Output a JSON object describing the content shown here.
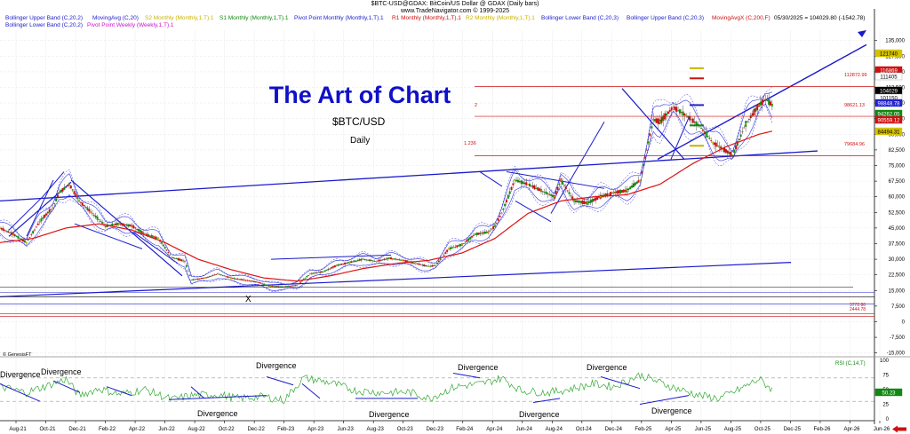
{
  "header": {
    "line1": "$BTC-USD@GDAX: BitCoin/US Dollar @ GDAX (Daily bars)",
    "line2": "www.TradeNavigator.com © 1999-2025",
    "quote": "05/30/2025 = 104029.80 (-1542.78)"
  },
  "indicators": [
    {
      "label": "Bollinger Upper Band (C,20,2)",
      "color": "#2222cc"
    },
    {
      "label": "MovingAvg (C,20)",
      "color": "#2222cc"
    },
    {
      "label": "S2 Monthly (Monthly,1,T).1",
      "color": "#c8b400"
    },
    {
      "label": "S1 Monthly (Monthly,1,T).1",
      "color": "#118811"
    },
    {
      "label": "Pivot Point Monthly (Monthly,1,T).1",
      "color": "#2222cc"
    },
    {
      "label": "R1 Monthly (Monthly,1,T).1",
      "color": "#cc1111"
    },
    {
      "label": "R2 Monthly (Monthly,1,T).1",
      "color": "#c8b400"
    },
    {
      "label": "Bollinger Lower Band (C,20,3)",
      "color": "#2222cc"
    },
    {
      "label": "Bollinger Upper Band (C,20,3)",
      "color": "#2222cc"
    },
    {
      "label": "MovingAvgX (C,200,F)",
      "color": "#cc1111"
    },
    {
      "label": "Bollinger Lower Band (C,20,2)",
      "color": "#2222cc"
    },
    {
      "label": "Pivot Point Weekly (Weekly,1,T).1",
      "color": "#cc11cc"
    }
  ],
  "annotations": {
    "title": "The Art of Chart",
    "symbol": "$BTC/USD",
    "period": "Daily",
    "x_mark": "X",
    "fib_2": "2",
    "fib_1236": "1.236",
    "lvl_112872": "112872.99",
    "lvl_98621": "98621.13",
    "lvl_79684": "79684.96",
    "lvl_low1": "3772.86",
    "lvl_low2": "2444.78",
    "copyright": "© GenesisFT",
    "rsi_label": "RSI (C,14,T)",
    "divergences": [
      "Divergence",
      "Divergence",
      "Divergence",
      "Divergence",
      "Divergence",
      "Divergence",
      "Divergence",
      "Divergence",
      "Divergence"
    ]
  },
  "price_tags": [
    {
      "text": "121740",
      "bg": "#d4c200",
      "fg": "#000000"
    },
    {
      "text": "116869",
      "bg": "#cc1111",
      "fg": "#ffffff"
    },
    {
      "text": "111405",
      "bg": "#ffffff",
      "fg": "#000000"
    },
    {
      "text": "104029",
      "bg": "#000000",
      "fg": "#ffffff"
    },
    {
      "text": "101150",
      "bg": "#ffffff",
      "fg": "#000000"
    },
    {
      "text": "98848.78",
      "bg": "#2222cc",
      "fg": "#ffffff"
    },
    {
      "text": "94262.05",
      "bg": "#118811",
      "fg": "#ffffff"
    },
    {
      "text": "90559.12",
      "bg": "#cc1111",
      "fg": "#ffffff"
    },
    {
      "text": "84494.31",
      "bg": "#d4c200",
      "fg": "#000000"
    },
    {
      "text": "50.23",
      "bg": "#118811",
      "fg": "#ffffff"
    }
  ],
  "chart_data": [
    {
      "type": "line",
      "title": "$BTC/USD",
      "yticks": [
        135000,
        127500,
        120000,
        112500,
        105000,
        97500,
        90000,
        82500,
        75000,
        67500,
        60000,
        52500,
        45000,
        37500,
        30000,
        22500,
        15000,
        7500,
        0,
        -7500,
        -15000
      ],
      "ylim": [
        -16000,
        140000
      ],
      "xticks": [
        "Aug-21",
        "Oct-21",
        "Dec-21",
        "Feb-22",
        "Apr-22",
        "Jun-22",
        "Aug-22",
        "Oct-22",
        "Dec-22",
        "Feb-23",
        "Apr-23",
        "Jun-23",
        "Aug-23",
        "Oct-23",
        "Dec-23",
        "Feb-24",
        "Apr-24",
        "Jun-24",
        "Aug-24",
        "Oct-24",
        "Dec-24",
        "Feb-25",
        "Apr-25",
        "Jun-25",
        "Aug-25",
        "Oct-25",
        "Dec-25",
        "Feb-26",
        "Apr-26",
        "Jun-26"
      ],
      "series": [
        {
          "values": [
            [
              0,
              45000
            ],
            [
              4,
              42000
            ],
            [
              8,
              38000
            ],
            [
              12,
              48000
            ],
            [
              16,
              55000
            ],
            [
              18,
              62000
            ],
            [
              21,
              66000
            ],
            [
              24,
              58000
            ],
            [
              28,
              52000
            ],
            [
              32,
              46000
            ],
            [
              36,
              47000
            ],
            [
              40,
              46000
            ],
            [
              44,
              42000
            ],
            [
              48,
              40000
            ],
            [
              52,
              31000
            ],
            [
              56,
              29000
            ],
            [
              58,
              20000
            ],
            [
              62,
              21000
            ],
            [
              66,
              23000
            ],
            [
              70,
              21000
            ],
            [
              74,
              20000
            ],
            [
              78,
              19000
            ],
            [
              82,
              17000
            ],
            [
              86,
              16800
            ],
            [
              90,
              17500
            ],
            [
              94,
              23000
            ],
            [
              98,
              24000
            ],
            [
              102,
              27000
            ],
            [
              106,
              28500
            ],
            [
              110,
              30000
            ],
            [
              114,
              29000
            ],
            [
              118,
              30500
            ],
            [
              122,
              29500
            ],
            [
              126,
              28000
            ],
            [
              130,
              26500
            ],
            [
              132,
              27000
            ],
            [
              136,
              35000
            ],
            [
              140,
              37000
            ],
            [
              144,
              42000
            ],
            [
              148,
              43000
            ],
            [
              150,
              46000
            ],
            [
              152,
              52000
            ],
            [
              156,
              68000
            ],
            [
              160,
              66000
            ],
            [
              164,
              63000
            ],
            [
              168,
              60000
            ],
            [
              170,
              68000
            ],
            [
              174,
              58000
            ],
            [
              178,
              57000
            ],
            [
              182,
              60000
            ],
            [
              186,
              62000
            ],
            [
              190,
              63000
            ],
            [
              194,
              68000
            ],
            [
              198,
              97000
            ],
            [
              200,
              96000
            ],
            [
              204,
              103000
            ],
            [
              208,
              99000
            ],
            [
              212,
              94000
            ],
            [
              216,
              86000
            ],
            [
              218,
              84000
            ],
            [
              222,
              80000
            ],
            [
              226,
              95000
            ],
            [
              230,
              104000
            ],
            [
              232,
              107000
            ],
            [
              234,
              104029
            ]
          ]
        },
        {
          "name": "MovingAvgX (C,200,F)",
          "values": [
            [
              0,
              38000
            ],
            [
              10,
              40000
            ],
            [
              20,
              45000
            ],
            [
              30,
              47000
            ],
            [
              40,
              44000
            ],
            [
              50,
              38000
            ],
            [
              60,
              30000
            ],
            [
              70,
              25000
            ],
            [
              80,
              21000
            ],
            [
              90,
              19500
            ],
            [
              100,
              22000
            ],
            [
              110,
              25500
            ],
            [
              120,
              28000
            ],
            [
              130,
              29500
            ],
            [
              140,
              33000
            ],
            [
              150,
              40000
            ],
            [
              160,
              52000
            ],
            [
              170,
              58000
            ],
            [
              180,
              60000
            ],
            [
              190,
              61000
            ],
            [
              200,
              66000
            ],
            [
              210,
              76000
            ],
            [
              220,
              84000
            ],
            [
              230,
              90000
            ],
            [
              234,
              91500
            ]
          ]
        }
      ]
    },
    {
      "type": "line",
      "title": "RSI (C,14,T)",
      "yticks": [
        100,
        75,
        50,
        25,
        0
      ],
      "ylim": [
        0,
        100
      ],
      "series": [
        {
          "values": [
            [
              0,
              55
            ],
            [
              8,
              45
            ],
            [
              16,
              60
            ],
            [
              20,
              68
            ],
            [
              24,
              40
            ],
            [
              30,
              52
            ],
            [
              36,
              42
            ],
            [
              44,
              50
            ],
            [
              52,
              33
            ],
            [
              58,
              40
            ],
            [
              66,
              42
            ],
            [
              72,
              35
            ],
            [
              80,
              38
            ],
            [
              86,
              32
            ],
            [
              92,
              70
            ],
            [
              100,
              62
            ],
            [
              108,
              48
            ],
            [
              116,
              45
            ],
            [
              124,
              46
            ],
            [
              130,
              35
            ],
            [
              138,
              55
            ],
            [
              146,
              60
            ],
            [
              152,
              70
            ],
            [
              158,
              48
            ],
            [
              166,
              45
            ],
            [
              172,
              50
            ],
            [
              180,
              60
            ],
            [
              186,
              55
            ],
            [
              194,
              75
            ],
            [
              200,
              62
            ],
            [
              206,
              50
            ],
            [
              212,
              40
            ],
            [
              218,
              35
            ],
            [
              224,
              50
            ],
            [
              230,
              68
            ],
            [
              234,
              50.23
            ]
          ]
        }
      ]
    }
  ]
}
